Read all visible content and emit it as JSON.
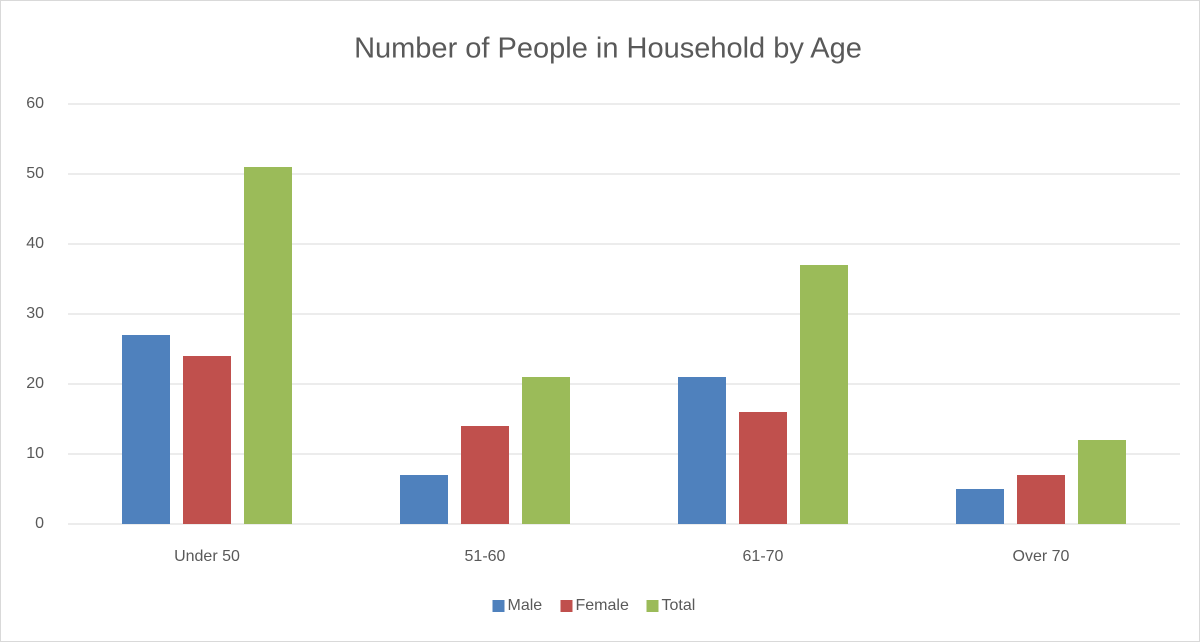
{
  "chart_data": {
    "type": "bar",
    "title": "Number of People in Household by Age",
    "categories": [
      "Under 50",
      "51-60",
      "61-70",
      "Over 70"
    ],
    "series": [
      {
        "name": "Male",
        "color": "#4f81bd",
        "values": [
          27,
          7,
          21,
          5
        ]
      },
      {
        "name": "Female",
        "color": "#c0504d",
        "values": [
          24,
          14,
          16,
          7
        ]
      },
      {
        "name": "Total",
        "color": "#9bbb59",
        "values": [
          51,
          21,
          37,
          12
        ]
      }
    ],
    "ylim": [
      0,
      60
    ],
    "yticks": [
      0,
      10,
      20,
      30,
      40,
      50,
      60
    ],
    "grid": true,
    "legend": "bottom"
  }
}
